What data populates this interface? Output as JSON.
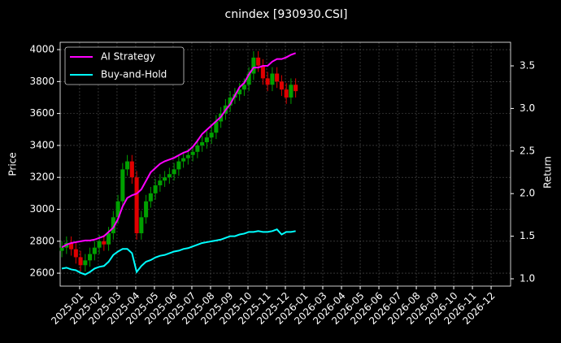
{
  "chart_data": {
    "type": "candlestick",
    "title": "cnindex [930930.CSI]",
    "ylabel": "Price",
    "y2label": "Return",
    "xlim": [
      -1.04,
      23.04
    ],
    "xticks": [
      {
        "value": 0,
        "label": "2025-01"
      },
      {
        "value": 1,
        "label": "2025-02"
      },
      {
        "value": 2,
        "label": "2025-03"
      },
      {
        "value": 3,
        "label": "2025-04"
      },
      {
        "value": 4,
        "label": "2025-05"
      },
      {
        "value": 5,
        "label": "2025-06"
      },
      {
        "value": 6,
        "label": "2025-07"
      },
      {
        "value": 7,
        "label": "2025-08"
      },
      {
        "value": 8,
        "label": "2025-09"
      },
      {
        "value": 9,
        "label": "2025-10"
      },
      {
        "value": 10,
        "label": "2025-11"
      },
      {
        "value": 11,
        "label": "2025-12"
      },
      {
        "value": 12,
        "label": "2026-01"
      },
      {
        "value": 13,
        "label": "2026-03"
      },
      {
        "value": 14,
        "label": "2026-04"
      },
      {
        "value": 15,
        "label": "2026-05"
      },
      {
        "value": 16,
        "label": "2026-06"
      },
      {
        "value": 17,
        "label": "2026-07"
      },
      {
        "value": 18,
        "label": "2026-08"
      },
      {
        "value": 19,
        "label": "2026-09"
      },
      {
        "value": 20,
        "label": "2026-10"
      },
      {
        "value": 21,
        "label": "2026-11"
      },
      {
        "value": 22,
        "label": "2026-12"
      }
    ],
    "ylim": [
      2519,
      4046
    ],
    "yticks": [
      2600,
      2800,
      3000,
      3200,
      3400,
      3600,
      3800,
      4000
    ],
    "y2lim": [
      0.914,
      3.777
    ],
    "y2ticks": [
      {
        "value": 1,
        "label": "1.0"
      },
      1.5,
      {
        "value": 2,
        "label": "2.0"
      },
      2.5,
      {
        "value": 3,
        "label": "3.0"
      },
      3.5
    ],
    "grid": true,
    "legend": "upper left",
    "up_color": "#00a000",
    "down_color": "#e00000",
    "x": [
      -0.95,
      -0.7,
      -0.45,
      -0.2,
      0.05,
      0.3,
      0.55,
      0.8,
      1.05,
      1.3,
      1.55,
      1.8,
      2.05,
      2.3,
      2.55,
      2.8,
      3.05,
      3.3,
      3.55,
      3.8,
      4.05,
      4.3,
      4.55,
      4.8,
      5.05,
      5.3,
      5.55,
      5.8,
      6.05,
      6.3,
      6.55,
      6.8,
      7.05,
      7.3,
      7.55,
      7.8,
      8.05,
      8.3,
      8.55,
      8.8,
      9.05,
      9.3,
      9.55,
      9.8,
      10.05,
      10.3,
      10.55,
      10.8,
      11.05,
      11.3,
      11.55
    ],
    "open": [
      2740,
      2760,
      2790,
      2750,
      2700,
      2650,
      2680,
      2720,
      2760,
      2800,
      2780,
      2850,
      2950,
      3050,
      3250,
      3300,
      3200,
      2850,
      2950,
      3050,
      3100,
      3150,
      3180,
      3200,
      3220,
      3250,
      3300,
      3320,
      3340,
      3360,
      3400,
      3420,
      3450,
      3480,
      3550,
      3600,
      3650,
      3700,
      3720,
      3750,
      3780,
      3850,
      3950,
      3900,
      3820,
      3780,
      3850,
      3800,
      3750,
      3700,
      3780
    ],
    "high": [
      2800,
      2830,
      2830,
      2790,
      2740,
      2720,
      2760,
      2800,
      2840,
      2840,
      2890,
      2990,
      3090,
      3290,
      3340,
      3340,
      3240,
      2990,
      3090,
      3140,
      3190,
      3220,
      3240,
      3260,
      3290,
      3340,
      3360,
      3380,
      3400,
      3440,
      3460,
      3490,
      3520,
      3590,
      3640,
      3690,
      3740,
      3760,
      3790,
      3820,
      3890,
      3990,
      3990,
      3940,
      3860,
      3890,
      3890,
      3840,
      3790,
      3820,
      3820
    ],
    "low": [
      2700,
      2720,
      2710,
      2660,
      2610,
      2610,
      2640,
      2680,
      2720,
      2740,
      2740,
      2810,
      2910,
      3010,
      3210,
      3160,
      2810,
      2810,
      2910,
      3010,
      3060,
      3110,
      3140,
      3160,
      3180,
      3210,
      3260,
      3280,
      3300,
      3320,
      3360,
      3380,
      3410,
      3440,
      3510,
      3560,
      3610,
      3660,
      3680,
      3710,
      3740,
      3810,
      3860,
      3780,
      3740,
      3740,
      3760,
      3710,
      3660,
      3660,
      3700
    ],
    "close": [
      2760,
      2790,
      2750,
      2700,
      2650,
      2680,
      2720,
      2760,
      2800,
      2780,
      2850,
      2950,
      3050,
      3250,
      3300,
      3200,
      2850,
      2950,
      3050,
      3100,
      3150,
      3180,
      3200,
      3220,
      3250,
      3300,
      3320,
      3340,
      3360,
      3400,
      3420,
      3450,
      3480,
      3550,
      3600,
      3650,
      3700,
      3720,
      3750,
      3780,
      3850,
      3950,
      3900,
      3820,
      3780,
      3850,
      3800,
      3750,
      3700,
      3780,
      3740
    ],
    "series": [
      {
        "name": "AI Strategy",
        "color": "#ff00ff",
        "axis": "y2",
        "values": [
          1.37,
          1.4,
          1.42,
          1.43,
          1.44,
          1.45,
          1.45,
          1.46,
          1.48,
          1.5,
          1.55,
          1.6,
          1.7,
          1.85,
          1.95,
          1.98,
          2.0,
          2.05,
          2.15,
          2.25,
          2.3,
          2.35,
          2.38,
          2.4,
          2.42,
          2.45,
          2.48,
          2.5,
          2.55,
          2.62,
          2.7,
          2.75,
          2.8,
          2.85,
          2.9,
          2.98,
          3.05,
          3.15,
          3.25,
          3.3,
          3.4,
          3.48,
          3.48,
          3.5,
          3.5,
          3.55,
          3.58,
          3.58,
          3.6,
          3.63,
          3.65
        ]
      },
      {
        "name": "Buy-and-Hold",
        "color": "#00ffff",
        "axis": "y2",
        "values": [
          1.12,
          1.13,
          1.11,
          1.1,
          1.07,
          1.05,
          1.08,
          1.12,
          1.14,
          1.15,
          1.2,
          1.28,
          1.32,
          1.35,
          1.35,
          1.3,
          1.08,
          1.15,
          1.2,
          1.22,
          1.25,
          1.27,
          1.28,
          1.3,
          1.32,
          1.33,
          1.35,
          1.36,
          1.38,
          1.4,
          1.42,
          1.43,
          1.44,
          1.45,
          1.46,
          1.48,
          1.5,
          1.5,
          1.52,
          1.53,
          1.55,
          1.55,
          1.56,
          1.55,
          1.55,
          1.56,
          1.58,
          1.52,
          1.55,
          1.55,
          1.56
        ]
      }
    ]
  }
}
